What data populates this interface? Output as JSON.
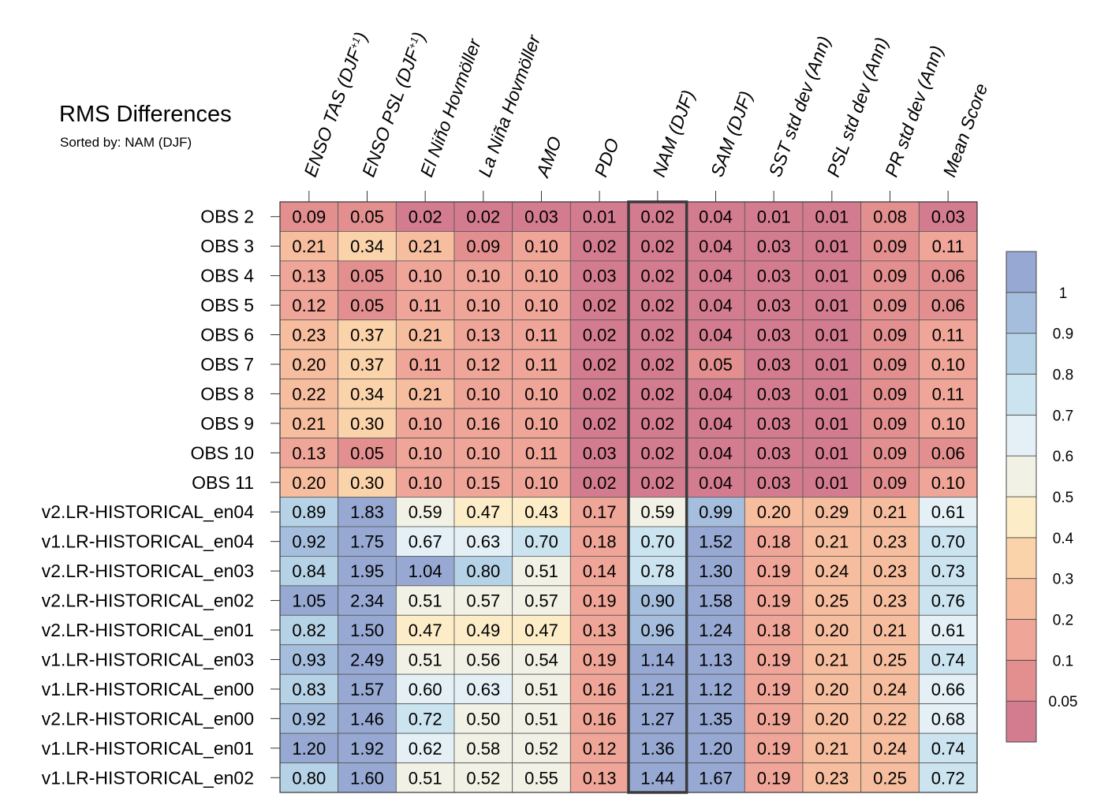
{
  "chart_data": {
    "type": "heatmap",
    "title": "RMS Differences",
    "subtitle": "Sorted by: NAM (DJF)",
    "highlighted_column": "NAM (DJF)",
    "columns": [
      {
        "label": "ENSO TAS (DJF",
        "sup": "+1",
        "tail": ")"
      },
      {
        "label": "ENSO PSL (DJF",
        "sup": "+1",
        "tail": ")"
      },
      {
        "label": "El Niño Hovmöller",
        "sup": "",
        "tail": ""
      },
      {
        "label": "La Niña Hovmöller",
        "sup": "",
        "tail": ""
      },
      {
        "label": "AMO",
        "sup": "",
        "tail": ""
      },
      {
        "label": "PDO",
        "sup": "",
        "tail": ""
      },
      {
        "label": "NAM (DJF)",
        "sup": "",
        "tail": ""
      },
      {
        "label": "SAM (DJF)",
        "sup": "",
        "tail": ""
      },
      {
        "label": "SST std dev (Ann)",
        "sup": "",
        "tail": ""
      },
      {
        "label": "PSL std dev (Ann)",
        "sup": "",
        "tail": ""
      },
      {
        "label": "PR std dev (Ann)",
        "sup": "",
        "tail": ""
      },
      {
        "label": "Mean Score",
        "sup": "",
        "tail": ""
      }
    ],
    "rows": [
      {
        "label": "OBS 2",
        "values": [
          "0.09",
          "0.05",
          "0.02",
          "0.02",
          "0.03",
          "0.01",
          "0.02",
          "0.04",
          "0.01",
          "0.01",
          "0.08",
          "0.03"
        ]
      },
      {
        "label": "OBS 3",
        "values": [
          "0.21",
          "0.34",
          "0.21",
          "0.09",
          "0.10",
          "0.02",
          "0.02",
          "0.04",
          "0.03",
          "0.01",
          "0.09",
          "0.11"
        ]
      },
      {
        "label": "OBS 4",
        "values": [
          "0.13",
          "0.05",
          "0.10",
          "0.10",
          "0.10",
          "0.03",
          "0.02",
          "0.04",
          "0.03",
          "0.01",
          "0.09",
          "0.06"
        ]
      },
      {
        "label": "OBS 5",
        "values": [
          "0.12",
          "0.05",
          "0.11",
          "0.10",
          "0.10",
          "0.02",
          "0.02",
          "0.04",
          "0.03",
          "0.01",
          "0.09",
          "0.06"
        ]
      },
      {
        "label": "OBS 6",
        "values": [
          "0.23",
          "0.37",
          "0.21",
          "0.13",
          "0.11",
          "0.02",
          "0.02",
          "0.04",
          "0.03",
          "0.01",
          "0.09",
          "0.11"
        ]
      },
      {
        "label": "OBS 7",
        "values": [
          "0.20",
          "0.37",
          "0.11",
          "0.12",
          "0.11",
          "0.02",
          "0.02",
          "0.05",
          "0.03",
          "0.01",
          "0.09",
          "0.10"
        ]
      },
      {
        "label": "OBS 8",
        "values": [
          "0.22",
          "0.34",
          "0.21",
          "0.10",
          "0.10",
          "0.02",
          "0.02",
          "0.04",
          "0.03",
          "0.01",
          "0.09",
          "0.11"
        ]
      },
      {
        "label": "OBS 9",
        "values": [
          "0.21",
          "0.30",
          "0.10",
          "0.16",
          "0.10",
          "0.02",
          "0.02",
          "0.04",
          "0.03",
          "0.01",
          "0.09",
          "0.10"
        ]
      },
      {
        "label": "OBS 10",
        "values": [
          "0.13",
          "0.05",
          "0.10",
          "0.10",
          "0.11",
          "0.03",
          "0.02",
          "0.04",
          "0.03",
          "0.01",
          "0.09",
          "0.06"
        ]
      },
      {
        "label": "OBS 11",
        "values": [
          "0.20",
          "0.30",
          "0.10",
          "0.15",
          "0.10",
          "0.02",
          "0.02",
          "0.04",
          "0.03",
          "0.01",
          "0.09",
          "0.10"
        ]
      },
      {
        "label": "v2.LR-HISTORICAL_en04",
        "values": [
          "0.89",
          "1.83",
          "0.59",
          "0.47",
          "0.43",
          "0.17",
          "0.59",
          "0.99",
          "0.20",
          "0.29",
          "0.21",
          "0.61"
        ]
      },
      {
        "label": "v1.LR-HISTORICAL_en04",
        "values": [
          "0.92",
          "1.75",
          "0.67",
          "0.63",
          "0.70",
          "0.18",
          "0.70",
          "1.52",
          "0.18",
          "0.21",
          "0.23",
          "0.70"
        ]
      },
      {
        "label": "v2.LR-HISTORICAL_en03",
        "values": [
          "0.84",
          "1.95",
          "1.04",
          "0.80",
          "0.51",
          "0.14",
          "0.78",
          "1.30",
          "0.19",
          "0.24",
          "0.23",
          "0.73"
        ]
      },
      {
        "label": "v2.LR-HISTORICAL_en02",
        "values": [
          "1.05",
          "2.34",
          "0.51",
          "0.57",
          "0.57",
          "0.19",
          "0.90",
          "1.58",
          "0.19",
          "0.25",
          "0.23",
          "0.76"
        ]
      },
      {
        "label": "v2.LR-HISTORICAL_en01",
        "values": [
          "0.82",
          "1.50",
          "0.47",
          "0.49",
          "0.47",
          "0.13",
          "0.96",
          "1.24",
          "0.18",
          "0.20",
          "0.21",
          "0.61"
        ]
      },
      {
        "label": "v1.LR-HISTORICAL_en03",
        "values": [
          "0.93",
          "2.49",
          "0.51",
          "0.56",
          "0.54",
          "0.19",
          "1.14",
          "1.13",
          "0.19",
          "0.21",
          "0.25",
          "0.74"
        ]
      },
      {
        "label": "v1.LR-HISTORICAL_en00",
        "values": [
          "0.83",
          "1.57",
          "0.60",
          "0.63",
          "0.51",
          "0.16",
          "1.21",
          "1.12",
          "0.19",
          "0.20",
          "0.24",
          "0.66"
        ]
      },
      {
        "label": "v2.LR-HISTORICAL_en00",
        "values": [
          "0.92",
          "1.46",
          "0.72",
          "0.50",
          "0.51",
          "0.16",
          "1.27",
          "1.35",
          "0.19",
          "0.20",
          "0.22",
          "0.68"
        ]
      },
      {
        "label": "v1.LR-HISTORICAL_en01",
        "values": [
          "1.20",
          "1.92",
          "0.62",
          "0.58",
          "0.52",
          "0.12",
          "1.36",
          "1.20",
          "0.19",
          "0.21",
          "0.24",
          "0.74"
        ]
      },
      {
        "label": "v1.LR-HISTORICAL_en02",
        "values": [
          "0.80",
          "1.60",
          "0.51",
          "0.52",
          "0.55",
          "0.13",
          "1.44",
          "1.67",
          "0.19",
          "0.23",
          "0.25",
          "0.72"
        ]
      }
    ],
    "colorbar": {
      "thresholds": [
        0.05,
        0.1,
        0.2,
        0.3,
        0.4,
        0.5,
        0.6,
        0.7,
        0.8,
        0.9,
        1
      ],
      "tick_labels": [
        "0.05",
        "0.1",
        "0.2",
        "0.3",
        "0.4",
        "0.5",
        "0.6",
        "0.7",
        "0.8",
        "0.9",
        "1"
      ],
      "colors_low_to_high": [
        "#d47c8f",
        "#e38f8f",
        "#efa597",
        "#f6bd9e",
        "#fbd3aa",
        "#fcedc8",
        "#f2f1e6",
        "#e4f0f5",
        "#cce4ef",
        "#b6d2e6",
        "#a6bedd",
        "#97a9d2"
      ]
    }
  }
}
